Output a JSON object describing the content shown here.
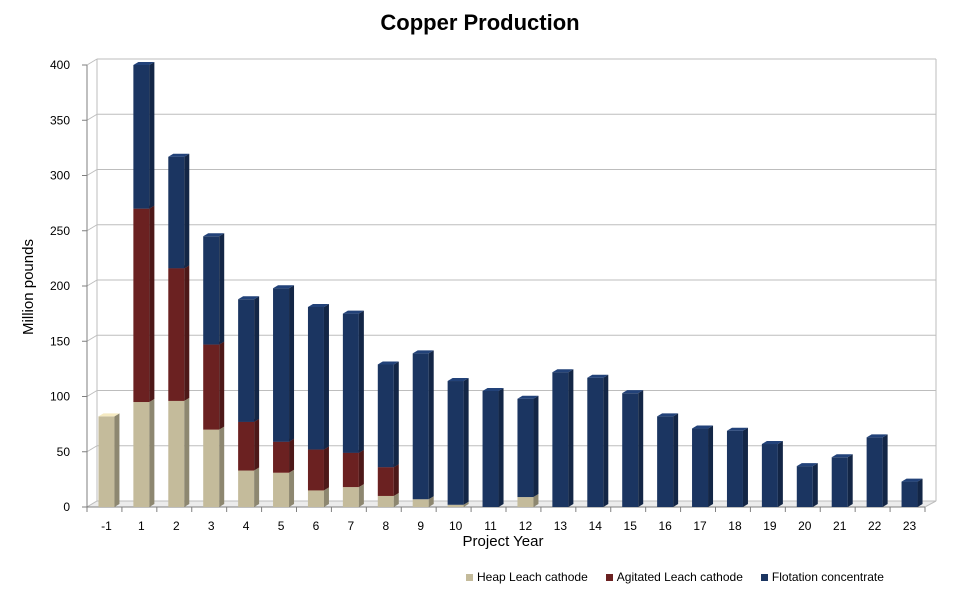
{
  "chart_data": {
    "type": "bar",
    "stacked": true,
    "title": "Copper Production",
    "xlabel": "Project Year",
    "ylabel": "Million pounds",
    "ylim": [
      0,
      400
    ],
    "yticks": [
      0,
      50,
      100,
      150,
      200,
      250,
      300,
      350,
      400
    ],
    "grid": true,
    "legend_position": "bottom-right",
    "categories": [
      "-1",
      "1",
      "2",
      "3",
      "4",
      "5",
      "6",
      "7",
      "8",
      "9",
      "10",
      "11",
      "12",
      "13",
      "14",
      "15",
      "16",
      "17",
      "18",
      "19",
      "20",
      "21",
      "22",
      "23"
    ],
    "series": [
      {
        "name": "Heap Leach cathode",
        "color": "#c4bb9b",
        "values": [
          82,
          95,
          96,
          70,
          33,
          31,
          15,
          18,
          10,
          7,
          2,
          0,
          9,
          0,
          0,
          0,
          0,
          0,
          0,
          0,
          0,
          0,
          0,
          0
        ]
      },
      {
        "name": "Agitated Leach cathode",
        "color": "#6b2121",
        "values": [
          0,
          175,
          120,
          77,
          44,
          28,
          37,
          31,
          26,
          0,
          0,
          0,
          0,
          0,
          0,
          0,
          0,
          0,
          0,
          0,
          0,
          0,
          0,
          0
        ]
      },
      {
        "name": "Flotation concentrate",
        "color": "#1b3561",
        "values": [
          0,
          130,
          101,
          98,
          111,
          139,
          129,
          126,
          93,
          132,
          112,
          105,
          89,
          122,
          117,
          103,
          82,
          71,
          69,
          57,
          37,
          45,
          63,
          23
        ]
      }
    ]
  }
}
